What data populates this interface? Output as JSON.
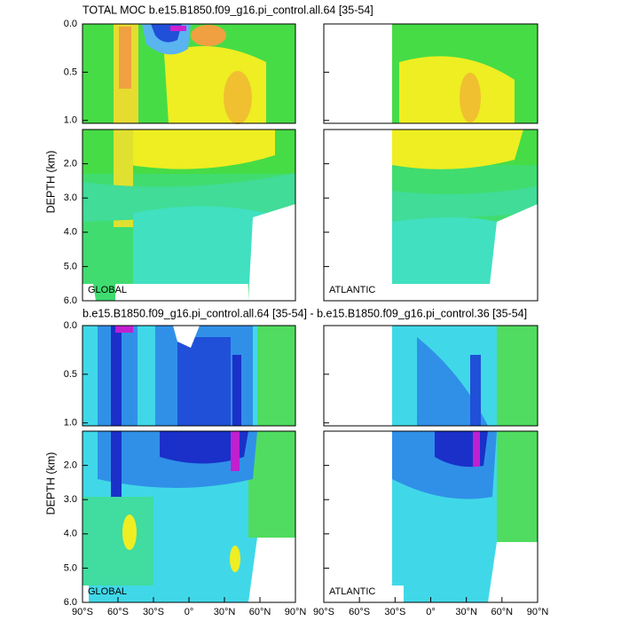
{
  "chart_data": [
    {
      "type": "contour",
      "title": "TOTAL MOC b.e15.B1850.f09_g16.pi_control.all.64 [35-54]",
      "ylabel": "DEPTH (km)",
      "panels": [
        "GLOBAL",
        "ATLANTIC"
      ],
      "xlim": [
        -90,
        90
      ],
      "depth_ranges": [
        {
          "ylim": [
            0,
            1.03
          ],
          "yticks": [
            {
              "value": 0,
              "label": "0.0"
            },
            {
              "value": 0.5,
              "label": "0.5"
            },
            {
              "value": 1,
              "label": "1.0"
            }
          ]
        },
        {
          "ylim": [
            1,
            6
          ],
          "yticks": [
            {
              "value": 2,
              "label": "2.0"
            },
            {
              "value": 3,
              "label": "3.0"
            },
            {
              "value": 4,
              "label": "4.0"
            },
            {
              "value": 5,
              "label": "5.0"
            },
            {
              "value": 6,
              "label": "6.0"
            }
          ]
        }
      ]
    },
    {
      "type": "contour",
      "title": "b.e15.B1850.f09_g16.pi_control.all.64 [35-54] - b.e15.B1850.f09_g16.pi_control.36 [35-54]",
      "ylabel": "DEPTH (km)",
      "panels": [
        "GLOBAL",
        "ATLANTIC"
      ],
      "xlim": [
        -90,
        90
      ],
      "xticks": [
        {
          "value": -90,
          "label": "90°S"
        },
        {
          "value": -60,
          "label": "60°S"
        },
        {
          "value": -30,
          "label": "30°S"
        },
        {
          "value": 0,
          "label": "0°"
        },
        {
          "value": 30,
          "label": "30°N"
        },
        {
          "value": 60,
          "label": "60°N"
        },
        {
          "value": 90,
          "label": "90°N"
        }
      ],
      "depth_ranges": [
        {
          "ylim": [
            0,
            1.03
          ],
          "yticks": [
            {
              "value": 0,
              "label": "0.0"
            },
            {
              "value": 0.5,
              "label": "0.5"
            },
            {
              "value": 1,
              "label": "1.0"
            }
          ]
        },
        {
          "ylim": [
            1,
            6
          ],
          "yticks": [
            {
              "value": 2,
              "label": "2.0"
            },
            {
              "value": 3,
              "label": "3.0"
            },
            {
              "value": 4,
              "label": "4.0"
            },
            {
              "value": 5,
              "label": "5.0"
            },
            {
              "value": 6,
              "label": "6.0"
            }
          ]
        }
      ]
    }
  ]
}
